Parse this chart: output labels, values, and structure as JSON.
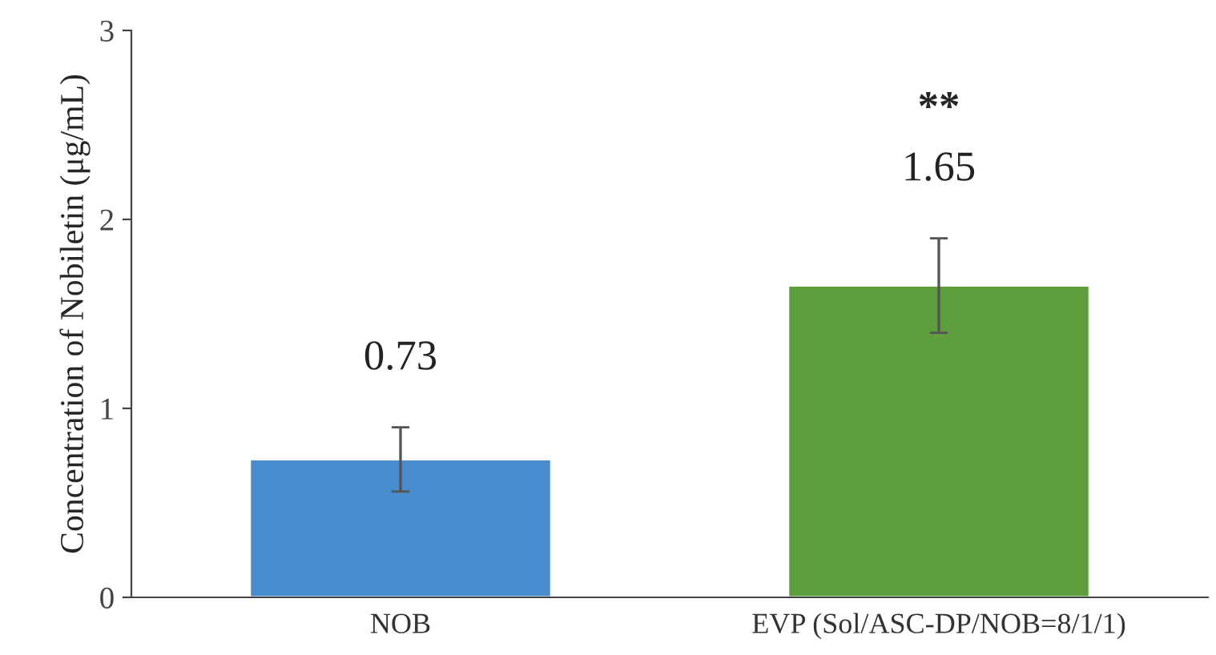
{
  "chart_data": {
    "type": "bar",
    "ylabel": "Concentration of Nobiletin (μg/mL)",
    "categories": [
      "NOB",
      "EVP (Sol/ASC-DP/NOB=8/1/1)"
    ],
    "values": [
      0.73,
      1.65
    ],
    "colors": [
      "#4a8dcf",
      "#5f9e3d"
    ],
    "errors": [
      0.17,
      0.25
    ],
    "data_labels": true,
    "annotations": [
      "**"
    ],
    "ylim": [
      0,
      3
    ],
    "yticks": [
      0,
      1,
      2,
      3
    ],
    "grid": false,
    "legend": false
  }
}
